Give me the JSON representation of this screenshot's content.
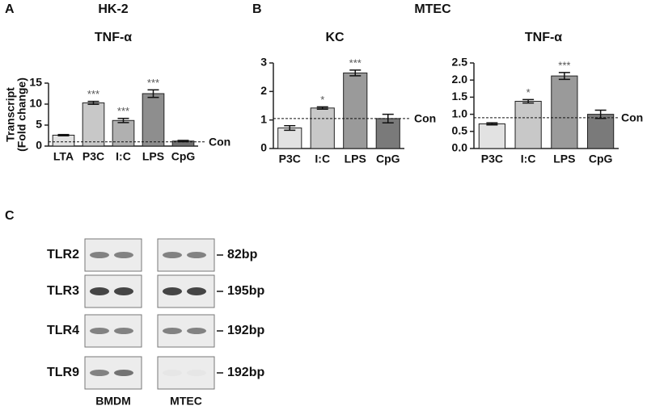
{
  "figure": {
    "panels": [
      {
        "letter": "A",
        "title": "HK-2"
      },
      {
        "letter": "B",
        "title": "MTEC"
      },
      {
        "letter": "C"
      }
    ]
  },
  "chart_data": [
    {
      "type": "bar",
      "title": "TNF-α",
      "ylabel": [
        "Transcript",
        "(Fold change)"
      ],
      "categories": [
        "LTA",
        "P3C",
        "I:C",
        "LPS",
        "CpG"
      ],
      "values": [
        2.6,
        10.3,
        6.1,
        12.5,
        1.2
      ],
      "errors": [
        0.15,
        0.35,
        0.5,
        0.9,
        0.15
      ],
      "significance": [
        null,
        "***",
        "***",
        "***",
        null
      ],
      "colors": [
        "#e2e2e2",
        "#c8c8c8",
        "#b0b0b0",
        "#8e8e8e",
        "#707070"
      ],
      "ylim": [
        0,
        15
      ],
      "yticks": [
        0,
        5,
        10,
        15
      ],
      "reference_line": {
        "value": 1,
        "label": "Con"
      }
    },
    {
      "type": "bar",
      "title": "KC",
      "categories": [
        "P3C",
        "I:C",
        "LPS",
        "CpG"
      ],
      "values": [
        0.72,
        1.42,
        2.65,
        1.05
      ],
      "errors": [
        0.08,
        0.04,
        0.1,
        0.15
      ],
      "significance": [
        null,
        "*",
        "***",
        null
      ],
      "colors": [
        "#e2e2e2",
        "#c8c8c8",
        "#9a9a9a",
        "#7a7a7a"
      ],
      "ylim": [
        0,
        3
      ],
      "yticks": [
        0,
        1,
        2,
        3
      ],
      "reference_line": {
        "value": 1.05,
        "label": "Con"
      }
    },
    {
      "type": "bar",
      "title": "TNF-α",
      "categories": [
        "P3C",
        "I:C",
        "LPS",
        "CpG"
      ],
      "values": [
        0.72,
        1.38,
        2.12,
        1.0
      ],
      "errors": [
        0.03,
        0.05,
        0.1,
        0.12
      ],
      "significance": [
        null,
        "*",
        "***",
        null
      ],
      "colors": [
        "#e2e2e2",
        "#c8c8c8",
        "#9a9a9a",
        "#7a7a7a"
      ],
      "ylim": [
        0,
        2.5
      ],
      "yticks": [
        {
          "value": 0,
          "label": "0.0"
        },
        0.5,
        {
          "value": 1,
          "label": "1.0"
        },
        1.5,
        {
          "value": 2,
          "label": "2.0"
        },
        2.5
      ],
      "reference_line": {
        "value": 0.9,
        "label": "Con"
      }
    }
  ],
  "gel": {
    "columns": [
      "BMDM",
      "MTEC"
    ],
    "rows": [
      {
        "label": "TLR2",
        "size": "82bp"
      },
      {
        "label": "TLR3",
        "size": "195bp"
      },
      {
        "label": "TLR4",
        "size": "192bp"
      },
      {
        "label": "TLR9",
        "size": "192bp"
      }
    ]
  }
}
